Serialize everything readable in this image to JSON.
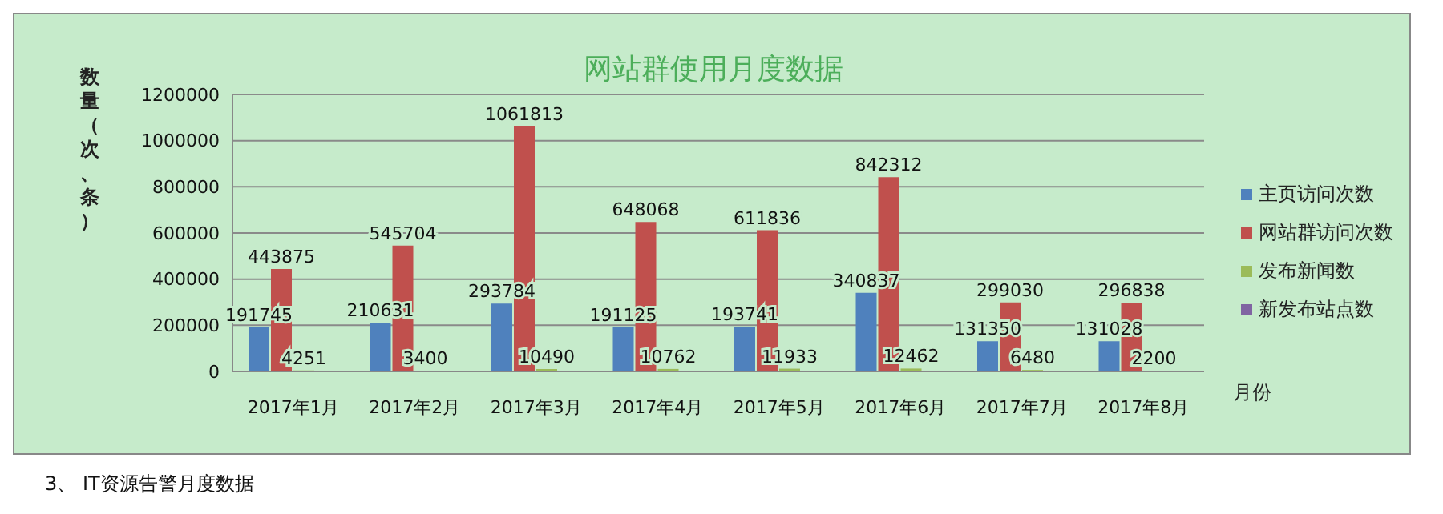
{
  "chart_data": {
    "type": "bar",
    "title": "网站群使用月度数据",
    "ylabel": "数量（次、条）",
    "xlabel": "月份",
    "categories": [
      "2017年1月",
      "2017年2月",
      "2017年3月",
      "2017年4月",
      "2017年5月",
      "2017年6月",
      "2017年7月",
      "2017年8月"
    ],
    "series": [
      {
        "name": "主页访问次数",
        "color": "#4f81bd",
        "values": [
          191745,
          210631,
          293784,
          191125,
          193741,
          340837,
          131350,
          131028
        ]
      },
      {
        "name": "网站群访问次数",
        "color": "#c0504d",
        "values": [
          443875,
          545704,
          1061813,
          648068,
          611836,
          842312,
          299030,
          296838
        ]
      },
      {
        "name": "发布新闻数",
        "color": "#9bbb59",
        "values": [
          4251,
          3400,
          10490,
          10762,
          11933,
          12462,
          6480,
          2200
        ]
      },
      {
        "name": "新发布站点数",
        "color": "#8064a2",
        "values": [
          null,
          null,
          null,
          null,
          null,
          null,
          null,
          null
        ]
      }
    ],
    "ylim": [
      0,
      1200000
    ],
    "yticks": [
      0,
      200000,
      400000,
      600000,
      800000,
      1000000,
      1200000
    ],
    "grid": "y",
    "legend": "right",
    "data_labels": true,
    "annotations": [
      "3、 IT资源告警月度数据"
    ]
  }
}
